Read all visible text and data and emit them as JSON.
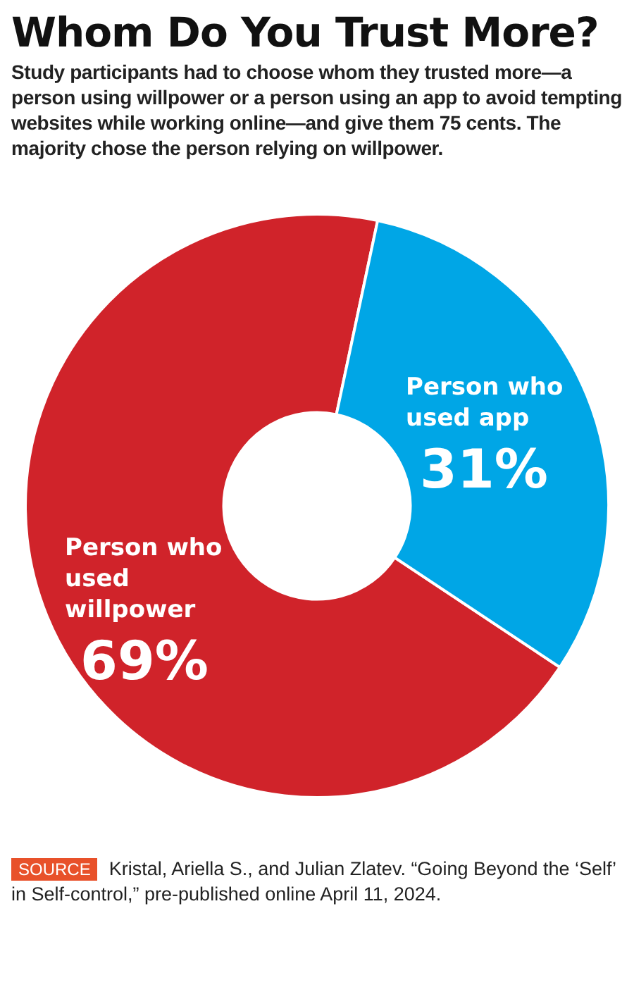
{
  "chart_data": {
    "type": "donut",
    "title": "Whom Do You Trust More?",
    "subtitle": "Study participants had to choose whom they trusted more—a person using willpower or a person using an app to avoid tempting websites while working online—and give them 75 cents. The majority chose the person relying on willpower.",
    "categories": [
      "Person who used willpower",
      "Person who used app"
    ],
    "values": [
      69,
      31
    ],
    "value_labels": [
      "69%",
      "31%"
    ],
    "colors": [
      "#d0232a",
      "#00a6e6"
    ],
    "legend": false,
    "annotations": [
      "SOURCE",
      "Kristal, Ariella S., and Julian Zlatev. “Going Beyond the ‘Self’ in Self-control,” pre-published online April 11, 2024."
    ]
  }
}
